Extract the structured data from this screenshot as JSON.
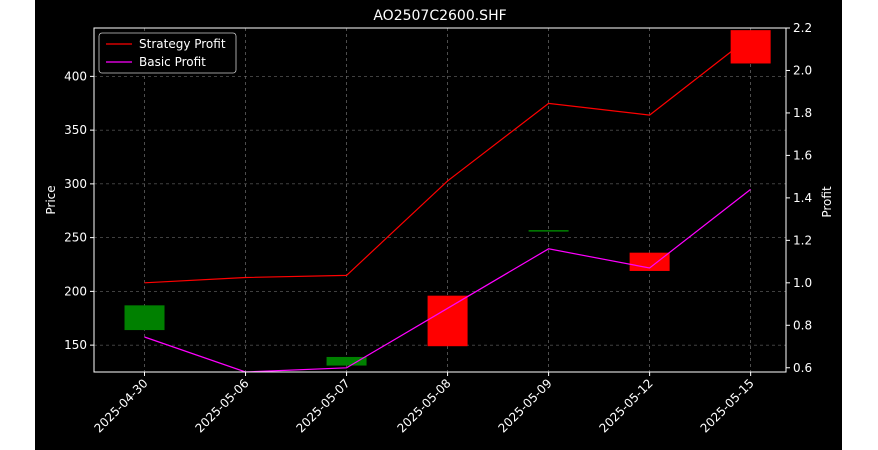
{
  "chart_data": {
    "type": "candlestick",
    "title": "AO2507C2600.SHF",
    "ylabel_left": "Price",
    "ylabel_right": "Profit",
    "categories": [
      "2025-04-30",
      "2025-05-06",
      "2025-05-07",
      "2025-05-08",
      "2025-05-09",
      "2025-05-12",
      "2025-05-15"
    ],
    "left_axis": {
      "ylim": [
        125,
        445
      ],
      "ticks": [
        150,
        200,
        250,
        300,
        350,
        400
      ]
    },
    "right_axis": {
      "ylim": [
        0.58,
        2.2
      ],
      "ticks": [
        0.6,
        0.8,
        1.0,
        1.2,
        1.4,
        1.6,
        1.8,
        2.0,
        2.2
      ]
    },
    "candles": [
      {
        "date": "2025-04-30",
        "open": 164,
        "close": 187,
        "color": "#008000"
      },
      {
        "date": "2025-05-06",
        "open": 125,
        "close": 125,
        "color": "#008000"
      },
      {
        "date": "2025-05-07",
        "open": 131,
        "close": 139,
        "color": "#008000"
      },
      {
        "date": "2025-05-08",
        "open": 196,
        "close": 149,
        "color": "#ff0000"
      },
      {
        "date": "2025-05-09",
        "open": 257,
        "close": 256,
        "color": "#008000"
      },
      {
        "date": "2025-05-12",
        "open": 236,
        "close": 219,
        "color": "#ff0000"
      },
      {
        "date": "2025-05-15",
        "open": 443,
        "close": 412,
        "color": "#ff0000"
      }
    ],
    "series": [
      {
        "name": "Strategy Profit",
        "axis": "right",
        "color": "#ff0000",
        "values": [
          1.0,
          1.025,
          1.035,
          1.48,
          1.845,
          1.79,
          2.16
        ]
      },
      {
        "name": "Basic Profit",
        "axis": "right",
        "color": "#ff00ff",
        "values": [
          0.745,
          0.58,
          0.6,
          0.88,
          1.16,
          1.07,
          1.44
        ]
      }
    ],
    "grid": true,
    "legend": "top-left",
    "colors": {
      "figure_background": "#000000",
      "axes_background": "#000000",
      "foreground": "#ffffff",
      "grid": "#808080"
    }
  }
}
